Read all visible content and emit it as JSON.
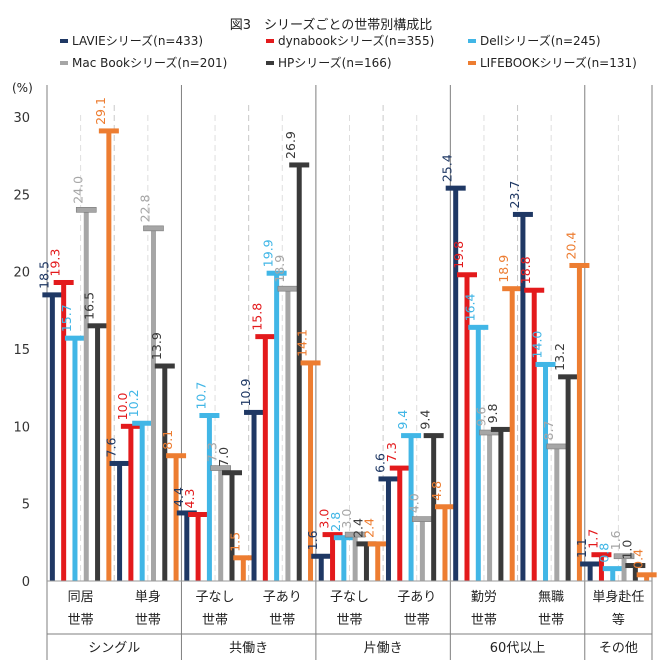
{
  "chart_data": {
    "type": "bar",
    "title": "図3　シリーズごとの世帯別構成比",
    "ylabel": "(%)",
    "ylim": [
      0,
      30
    ],
    "yticks": [
      0,
      5,
      10,
      15,
      20,
      25,
      30
    ],
    "grid": "vertical dashed",
    "legend_placement": "top",
    "categories": [
      "同居世帯",
      "単身世帯",
      "子なし世帯",
      "子あり世帯",
      "子なし世帯",
      "子あり世帯",
      "勤労世帯",
      "無職世帯",
      "単身赴任等"
    ],
    "category_lines": [
      [
        "同居",
        "世帯"
      ],
      [
        "単身",
        "世帯"
      ],
      [
        "子なし",
        "世帯"
      ],
      [
        "子あり",
        "世帯"
      ],
      [
        "子なし",
        "世帯"
      ],
      [
        "子あり",
        "世帯"
      ],
      [
        "勤労",
        "世帯"
      ],
      [
        "無職",
        "世帯"
      ],
      [
        "単身赴任",
        "等"
      ]
    ],
    "groups": [
      {
        "label": "シングル",
        "count": 2
      },
      {
        "label": "共働き",
        "count": 2
      },
      {
        "label": "片働き",
        "count": 2
      },
      {
        "label": "60代以上",
        "count": 2
      },
      {
        "label": "その他",
        "count": 1
      }
    ],
    "series": [
      {
        "name": "LAVIEシリーズ(n=433)",
        "color": "#1f3864",
        "values": [
          18.5,
          7.6,
          4.4,
          10.9,
          1.6,
          6.6,
          25.4,
          23.7,
          1.1
        ]
      },
      {
        "name": "dynabookシリーズ(n=355)",
        "color": "#e31a1c",
        "values": [
          19.3,
          10.0,
          4.3,
          15.8,
          3.0,
          7.3,
          19.8,
          18.8,
          1.7
        ]
      },
      {
        "name": "Dellシリーズ(n=245)",
        "color": "#41b6e6",
        "values": [
          15.7,
          10.2,
          10.7,
          19.9,
          2.8,
          9.4,
          16.4,
          14.0,
          0.8
        ]
      },
      {
        "name": "Mac Bookシリーズ(n=201)",
        "color": "#a6a6a6",
        "values": [
          24.0,
          22.8,
          7.3,
          18.9,
          3.0,
          4.0,
          9.6,
          8.7,
          1.6
        ]
      },
      {
        "name": "HPシリーズ(n=166)",
        "color": "#3a3a3a",
        "values": [
          16.5,
          13.9,
          7.0,
          26.9,
          2.4,
          9.4,
          9.8,
          13.2,
          1.0
        ]
      },
      {
        "name": "LIFEBOOKシリーズ(n=131)",
        "color": "#ed7d31",
        "values": [
          29.1,
          8.1,
          1.5,
          14.1,
          2.4,
          4.8,
          18.9,
          20.4,
          0.4
        ]
      }
    ]
  }
}
